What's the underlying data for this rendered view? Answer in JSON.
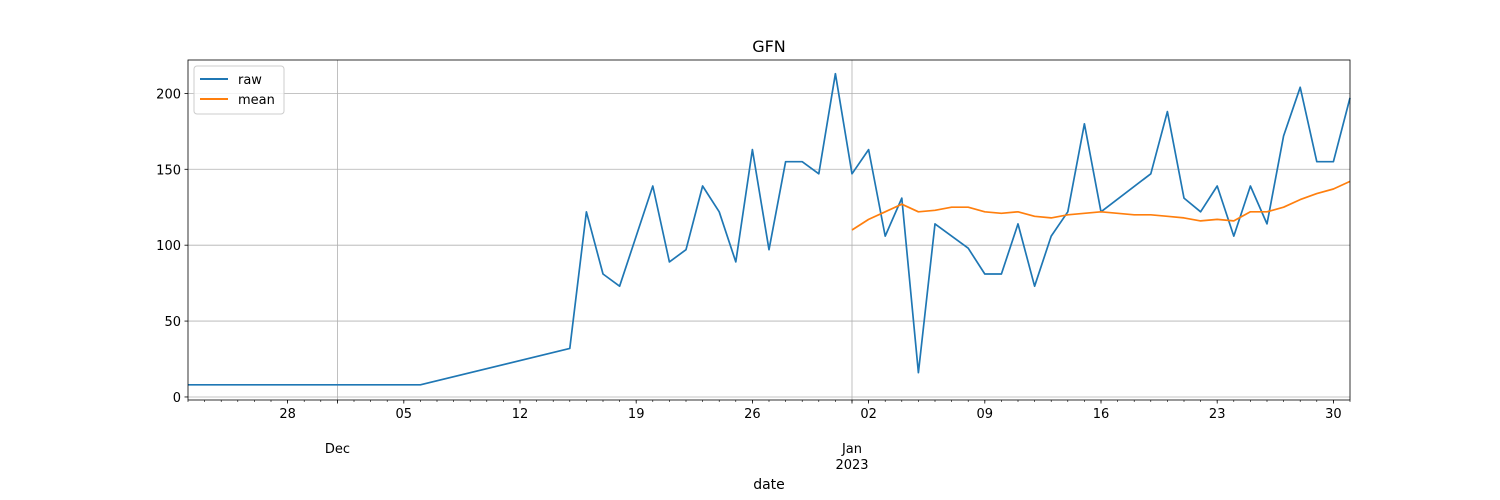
{
  "chart_data": {
    "type": "line",
    "title": "GFN",
    "xlabel": "date",
    "ylabel": "",
    "ylim": [
      -2,
      222
    ],
    "xlim": [
      "2022-11-22",
      "2023-01-31"
    ],
    "grid": true,
    "legend_position": "top-left",
    "y_ticks": [
      0,
      50,
      100,
      150,
      200
    ],
    "x_minor_ticks": "daily",
    "x_major_ticks": [
      {
        "date": "2022-11-28",
        "label": "28"
      },
      {
        "date": "2022-12-01",
        "label": "",
        "gridline": true
      },
      {
        "date": "2022-12-05",
        "label": "05"
      },
      {
        "date": "2022-12-12",
        "label": "12"
      },
      {
        "date": "2022-12-19",
        "label": "19"
      },
      {
        "date": "2022-12-26",
        "label": "26"
      },
      {
        "date": "2023-01-01",
        "label": "",
        "gridline": true
      },
      {
        "date": "2023-01-02",
        "label": "02"
      },
      {
        "date": "2023-01-09",
        "label": "09"
      },
      {
        "date": "2023-01-16",
        "label": "16"
      },
      {
        "date": "2023-01-23",
        "label": "23"
      },
      {
        "date": "2023-01-30",
        "label": "30"
      }
    ],
    "x_secondary_labels": [
      {
        "date": "2022-12-01",
        "lines": [
          "Dec"
        ]
      },
      {
        "date": "2023-01-01",
        "lines": [
          "Jan",
          "2023"
        ]
      }
    ],
    "series": [
      {
        "name": "raw",
        "color": "#1f77b4",
        "points": [
          [
            "2022-11-22",
            8
          ],
          [
            "2022-12-06",
            8
          ],
          [
            "2022-12-15",
            32
          ],
          [
            "2022-12-16",
            122
          ],
          [
            "2022-12-17",
            81
          ],
          [
            "2022-12-18",
            73
          ],
          [
            "2022-12-20",
            139
          ],
          [
            "2022-12-21",
            89
          ],
          [
            "2022-12-22",
            97
          ],
          [
            "2022-12-23",
            139
          ],
          [
            "2022-12-24",
            122
          ],
          [
            "2022-12-25",
            89
          ],
          [
            "2022-12-26",
            163
          ],
          [
            "2022-12-27",
            97
          ],
          [
            "2022-12-28",
            155
          ],
          [
            "2022-12-29",
            155
          ],
          [
            "2022-12-30",
            147
          ],
          [
            "2022-12-31",
            213
          ],
          [
            "2023-01-01",
            147
          ],
          [
            "2023-01-02",
            163
          ],
          [
            "2023-01-03",
            106
          ],
          [
            "2023-01-04",
            131
          ],
          [
            "2023-01-05",
            16
          ],
          [
            "2023-01-06",
            114
          ],
          [
            "2023-01-08",
            98
          ],
          [
            "2023-01-09",
            81
          ],
          [
            "2023-01-10",
            81
          ],
          [
            "2023-01-11",
            114
          ],
          [
            "2023-01-12",
            73
          ],
          [
            "2023-01-13",
            106
          ],
          [
            "2023-01-14",
            122
          ],
          [
            "2023-01-15",
            180
          ],
          [
            "2023-01-16",
            122
          ],
          [
            "2023-01-19",
            147
          ],
          [
            "2023-01-20",
            188
          ],
          [
            "2023-01-21",
            131
          ],
          [
            "2023-01-22",
            122
          ],
          [
            "2023-01-23",
            139
          ],
          [
            "2023-01-24",
            106
          ],
          [
            "2023-01-25",
            139
          ],
          [
            "2023-01-26",
            114
          ],
          [
            "2023-01-27",
            172
          ],
          [
            "2023-01-28",
            204
          ],
          [
            "2023-01-29",
            155
          ],
          [
            "2023-01-30",
            155
          ],
          [
            "2023-01-31",
            197
          ]
        ]
      },
      {
        "name": "mean",
        "color": "#ff7f0e",
        "points": [
          [
            "2023-01-01",
            110
          ],
          [
            "2023-01-02",
            117
          ],
          [
            "2023-01-03",
            122
          ],
          [
            "2023-01-04",
            127
          ],
          [
            "2023-01-05",
            122
          ],
          [
            "2023-01-06",
            123
          ],
          [
            "2023-01-07",
            125
          ],
          [
            "2023-01-08",
            125
          ],
          [
            "2023-01-09",
            122
          ],
          [
            "2023-01-10",
            121
          ],
          [
            "2023-01-11",
            122
          ],
          [
            "2023-01-12",
            119
          ],
          [
            "2023-01-13",
            118
          ],
          [
            "2023-01-14",
            120
          ],
          [
            "2023-01-15",
            121
          ],
          [
            "2023-01-16",
            122
          ],
          [
            "2023-01-17",
            121
          ],
          [
            "2023-01-18",
            120
          ],
          [
            "2023-01-19",
            120
          ],
          [
            "2023-01-20",
            119
          ],
          [
            "2023-01-21",
            118
          ],
          [
            "2023-01-22",
            116
          ],
          [
            "2023-01-23",
            117
          ],
          [
            "2023-01-24",
            116
          ],
          [
            "2023-01-25",
            122
          ],
          [
            "2023-01-26",
            122
          ],
          [
            "2023-01-27",
            125
          ],
          [
            "2023-01-28",
            130
          ],
          [
            "2023-01-29",
            134
          ],
          [
            "2023-01-30",
            137
          ],
          [
            "2023-01-31",
            142
          ]
        ]
      }
    ]
  }
}
